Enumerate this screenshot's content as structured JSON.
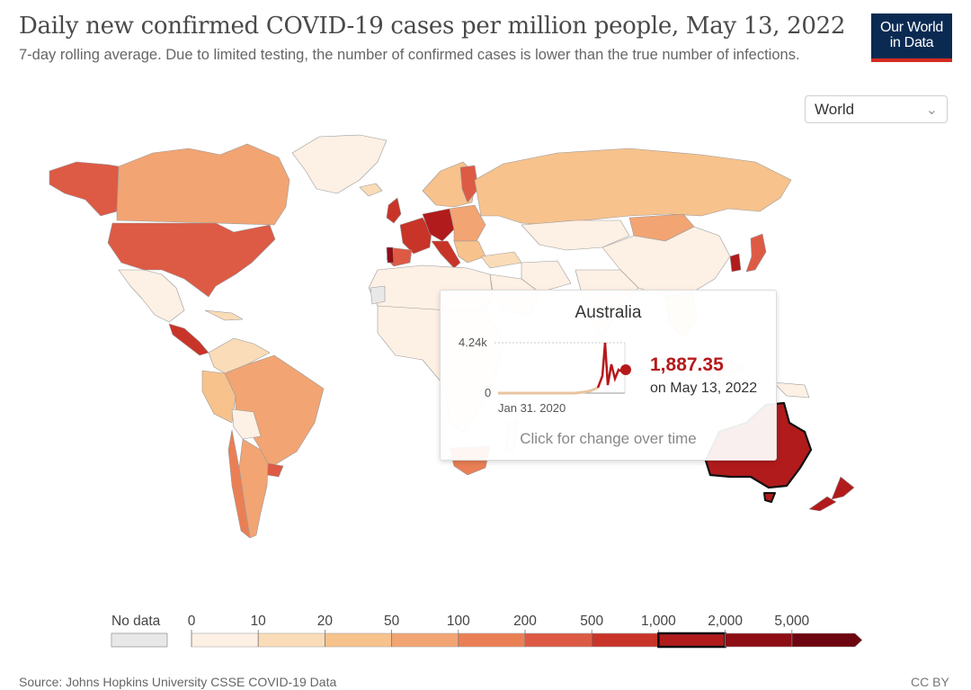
{
  "header": {
    "title": "Daily new confirmed COVID-19 cases per million people, May 13, 2022",
    "subtitle": "7-day rolling average. Due to limited testing, the number of confirmed cases is lower than the true number of infections.",
    "logo_line1": "Our World",
    "logo_line2": "in Data"
  },
  "region_select": {
    "value": "World",
    "icon": "chevron-down-icon"
  },
  "tooltip": {
    "country": "Australia",
    "y_max_label": "4.24k",
    "y_min_label": "0",
    "x_start_label": "Jan 31. 2020",
    "value": "1,887.35",
    "date": "on May 13, 2022",
    "hint": "Click for change over time",
    "value_color": "#b5191c"
  },
  "legend": {
    "no_data_label": "No data",
    "no_data_color": "#e8e8e8",
    "bins": [
      {
        "label": "0",
        "color": "#fdf0e4"
      },
      {
        "label": "10",
        "color": "#fbdcb8"
      },
      {
        "label": "20",
        "color": "#f7c28c"
      },
      {
        "label": "50",
        "color": "#f2a473"
      },
      {
        "label": "100",
        "color": "#ea7f55"
      },
      {
        "label": "200",
        "color": "#dd5a45"
      },
      {
        "label": "500",
        "color": "#c93428"
      },
      {
        "label": "1,000",
        "color": "#b11b1c"
      },
      {
        "label": "2,000",
        "color": "#8e0e15"
      },
      {
        "label": "5,000",
        "color": "#6d0610"
      }
    ],
    "highlighted_bin": "1,000"
  },
  "footer": {
    "source": "Source: Johns Hopkins University CSSE COVID-19 Data",
    "license": "CC BY"
  }
}
